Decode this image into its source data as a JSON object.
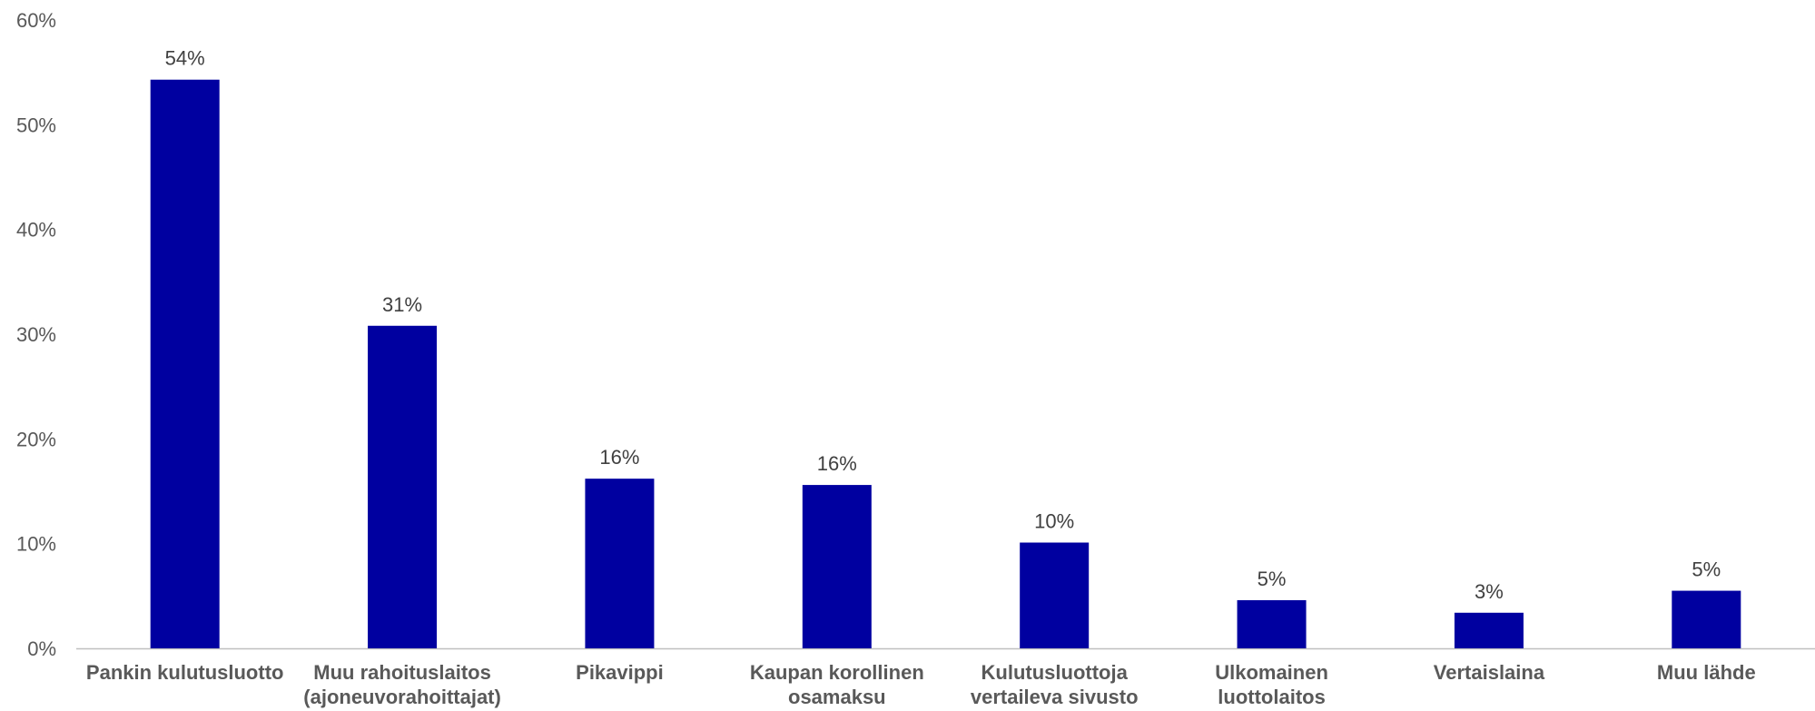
{
  "chart_data": {
    "type": "bar",
    "categories": [
      [
        "Pankin kulutusluotto"
      ],
      [
        "Muu rahoituslaitos",
        "(ajoneuvorahoittajat)"
      ],
      [
        "Pikavippi"
      ],
      [
        "Kaupan korollinen",
        "osamaksu"
      ],
      [
        "Kulutusluottoja",
        "vertaileva sivusto"
      ],
      [
        "Ulkomainen",
        "luottolaitos"
      ],
      [
        "Vertaislaina"
      ],
      [
        "Muu lähde"
      ]
    ],
    "values": [
      54.3,
      30.8,
      16.2,
      15.6,
      10.1,
      4.6,
      3.4,
      5.5
    ],
    "data_labels": [
      "54%",
      "31%",
      "16%",
      "16%",
      "10%",
      "5%",
      "3%",
      "5%"
    ],
    "y_ticks": [
      "0%",
      "10%",
      "20%",
      "30%",
      "40%",
      "50%",
      "60%"
    ],
    "ylim": [
      0,
      60
    ],
    "grid": false,
    "legend": "none",
    "bar_color": "#0000A0",
    "axis_color": "#BFBFBF",
    "title": "",
    "xlabel": "",
    "ylabel": ""
  }
}
